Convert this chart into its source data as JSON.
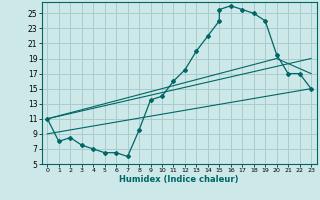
{
  "title": "",
  "xlabel": "Humidex (Indice chaleur)",
  "bg_color": "#cce8e8",
  "grid_color": "#aacccc",
  "line_color": "#006666",
  "xlim": [
    -0.5,
    23.5
  ],
  "ylim": [
    5,
    26.5
  ],
  "xticks": [
    0,
    1,
    2,
    3,
    4,
    5,
    6,
    7,
    8,
    9,
    10,
    11,
    12,
    13,
    14,
    15,
    16,
    17,
    18,
    19,
    20,
    21,
    22,
    23
  ],
  "yticks": [
    5,
    7,
    9,
    11,
    13,
    15,
    17,
    19,
    21,
    23,
    25
  ],
  "main_curve_x": [
    0,
    1,
    2,
    3,
    4,
    5,
    6,
    7,
    8,
    9,
    10,
    11,
    12,
    13,
    14,
    15,
    15,
    16,
    17,
    18,
    19,
    20,
    21,
    22,
    23
  ],
  "main_curve_y": [
    11,
    8,
    8.5,
    7.5,
    7,
    6.5,
    6.5,
    6.0,
    9.5,
    13.5,
    14,
    16,
    17.5,
    20,
    22,
    24,
    25.5,
    26,
    25.5,
    25,
    24,
    19.5,
    17,
    17,
    15
  ],
  "line1_x": [
    0,
    20,
    23
  ],
  "line1_y": [
    11,
    19.5,
    19
  ],
  "line2_x": [
    0,
    20,
    23
  ],
  "line2_y": [
    11,
    19.0,
    17
  ],
  "line3_x": [
    0,
    23
  ],
  "line3_y": [
    9,
    15
  ],
  "marker_size": 2.0
}
